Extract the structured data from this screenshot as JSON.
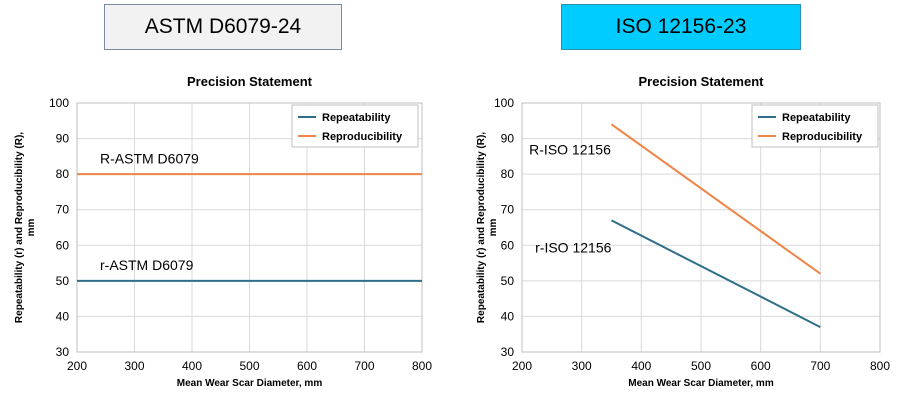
{
  "standards": {
    "left": "ASTM D6079-24",
    "right": "ISO 12156-23"
  },
  "colors": {
    "repeatability": "#2e6e8a",
    "reproducibility": "#ee8445",
    "grid": "#d9d9d9",
    "astm_box": "#f2f2f2",
    "iso_box": "#00ccff"
  },
  "chart_data": [
    {
      "type": "line",
      "title": "Precision Statement",
      "xlabel": "Mean Wear Scar Diameter, mm",
      "ylabel": "Repeatability (r) and Reproducibility (R), mm",
      "xlim": [
        200,
        800
      ],
      "ylim": [
        30,
        100
      ],
      "xticks": [
        200,
        300,
        400,
        500,
        600,
        700,
        800
      ],
      "yticks": [
        30,
        40,
        50,
        60,
        70,
        80,
        90,
        100
      ],
      "grid": true,
      "legend_position": "top-right",
      "series": [
        {
          "name": "Repeatability",
          "color": "#2e6e8a",
          "x": [
            200,
            800
          ],
          "y": [
            50,
            50
          ]
        },
        {
          "name": "Reproducibility",
          "color": "#ee8445",
          "x": [
            200,
            800
          ],
          "y": [
            80,
            80
          ]
        }
      ],
      "annotations": [
        {
          "text": "R-ASTM D6079",
          "x": 240,
          "y": 83
        },
        {
          "text": "r-ASTM D6079",
          "x": 240,
          "y": 53
        }
      ]
    },
    {
      "type": "line",
      "title": "Precision Statement",
      "xlabel": "Mean Wear Scar Diameter, mm",
      "ylabel": "Repeatability (r) and Reproducibility (R), mm",
      "xlim": [
        200,
        800
      ],
      "ylim": [
        30,
        100
      ],
      "xticks": [
        200,
        300,
        400,
        500,
        600,
        700,
        800
      ],
      "yticks": [
        30,
        40,
        50,
        60,
        70,
        80,
        90,
        100
      ],
      "grid": true,
      "legend_position": "top-right",
      "series": [
        {
          "name": "Repeatability",
          "color": "#2e6e8a",
          "x": [
            350,
            700
          ],
          "y": [
            67,
            37
          ]
        },
        {
          "name": "Reproducibility",
          "color": "#ee8445",
          "x": [
            350,
            700
          ],
          "y": [
            94,
            52
          ]
        }
      ],
      "annotations": [
        {
          "text": "R-ISO  12156",
          "x": 212,
          "y": 85.5
        },
        {
          "text": "r-ISO  12156",
          "x": 222,
          "y": 58
        }
      ]
    }
  ]
}
